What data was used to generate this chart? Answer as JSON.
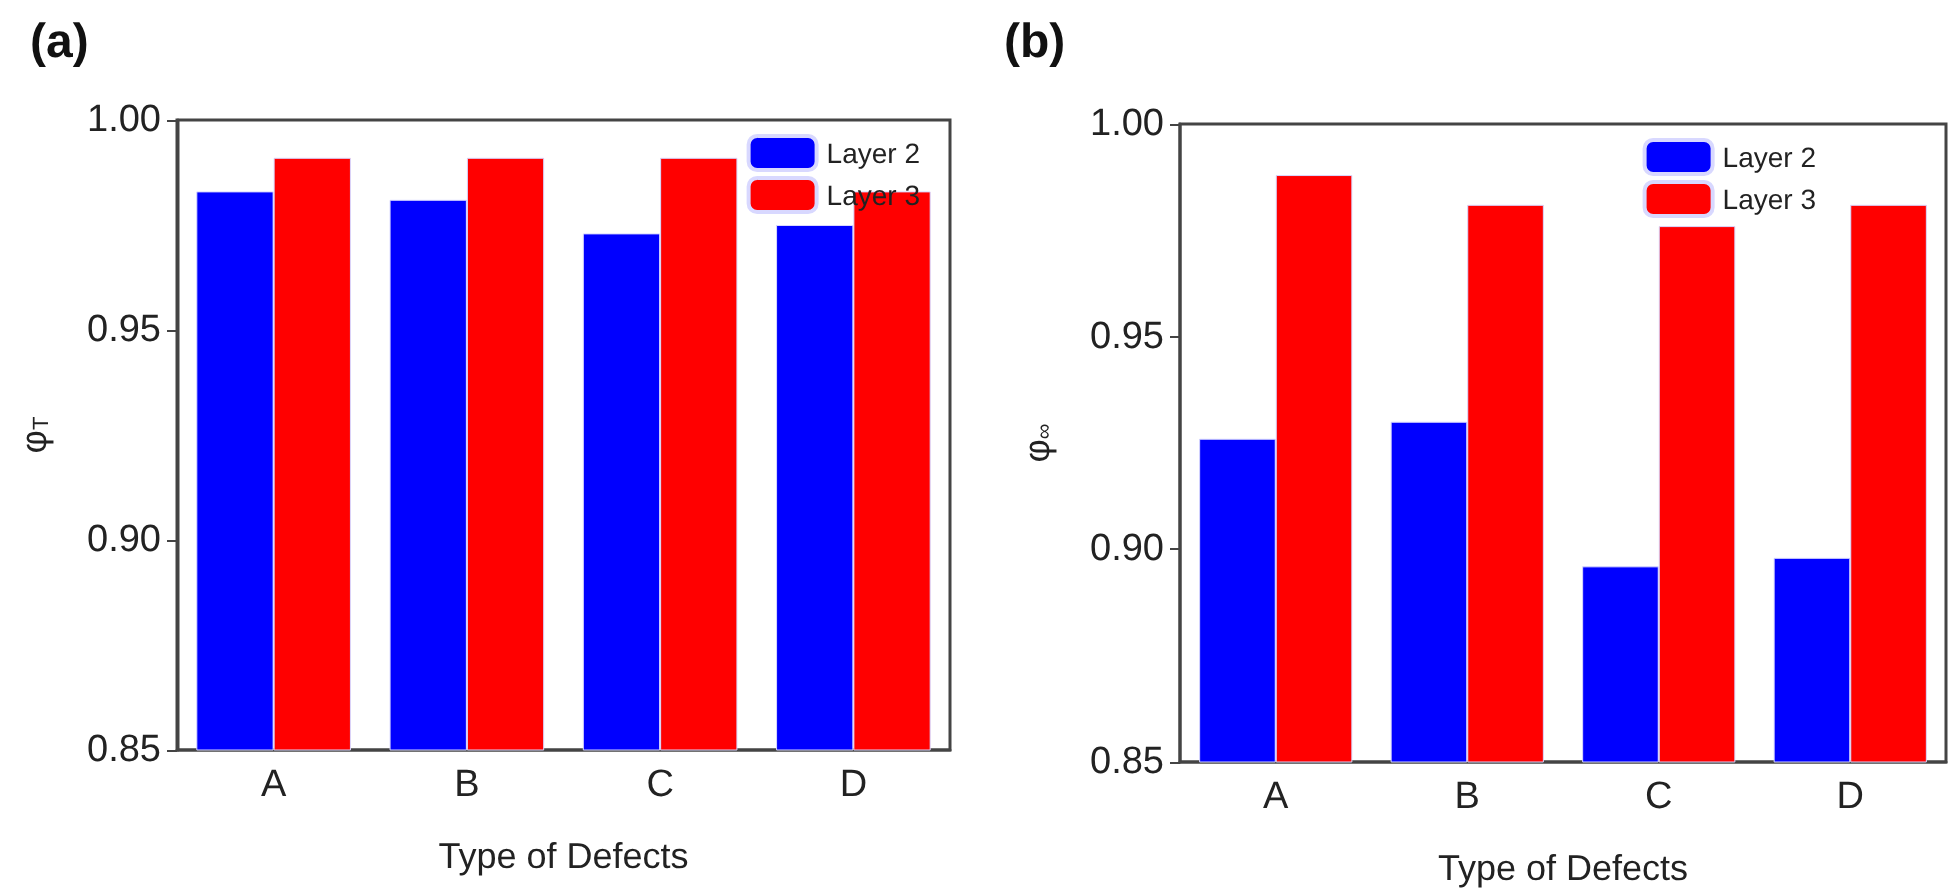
{
  "chart_data": [
    {
      "type": "bar",
      "title": "(a)",
      "xlabel": "Type of Defects",
      "ylabel": "φ$_{T}$",
      "categories": [
        "A",
        "B",
        "C",
        "D"
      ],
      "series": [
        {
          "name": "Layer 2",
          "color": "#0000ff",
          "values": [
            0.983,
            0.981,
            0.973,
            0.975
          ]
        },
        {
          "name": "Layer 3",
          "color": "#ff0000",
          "values": [
            0.991,
            0.991,
            0.991,
            0.983
          ]
        }
      ],
      "ylim": [
        0.85,
        1.0
      ],
      "yticks": [
        {
          "value": 0.85,
          "label": "0.85"
        },
        {
          "value": 0.9,
          "label": "0.90"
        },
        {
          "value": 0.95,
          "label": "0.95"
        },
        {
          "value": 1.0,
          "label": "1.00"
        }
      ],
      "grid": false,
      "legend": "top right"
    },
    {
      "type": "bar",
      "title": "(b)",
      "xlabel": "Type of Defects",
      "ylabel": "φ$_{∞}$",
      "categories": [
        "A",
        "B",
        "C",
        "D"
      ],
      "series": [
        {
          "name": "Layer 2",
          "color": "#0000ff",
          "values": [
            0.926,
            0.93,
            0.896,
            0.898
          ]
        },
        {
          "name": "Layer 3",
          "color": "#ff0000",
          "values": [
            0.988,
            0.981,
            0.976,
            0.981
          ]
        }
      ],
      "ylim": [
        0.85,
        1.0
      ],
      "yticks": [
        {
          "value": 0.85,
          "label": "0.85"
        },
        {
          "value": 0.9,
          "label": "0.90"
        },
        {
          "value": 0.95,
          "label": "0.95"
        },
        {
          "value": 1.0,
          "label": "1.00"
        }
      ],
      "grid": false,
      "legend": "top right"
    }
  ]
}
